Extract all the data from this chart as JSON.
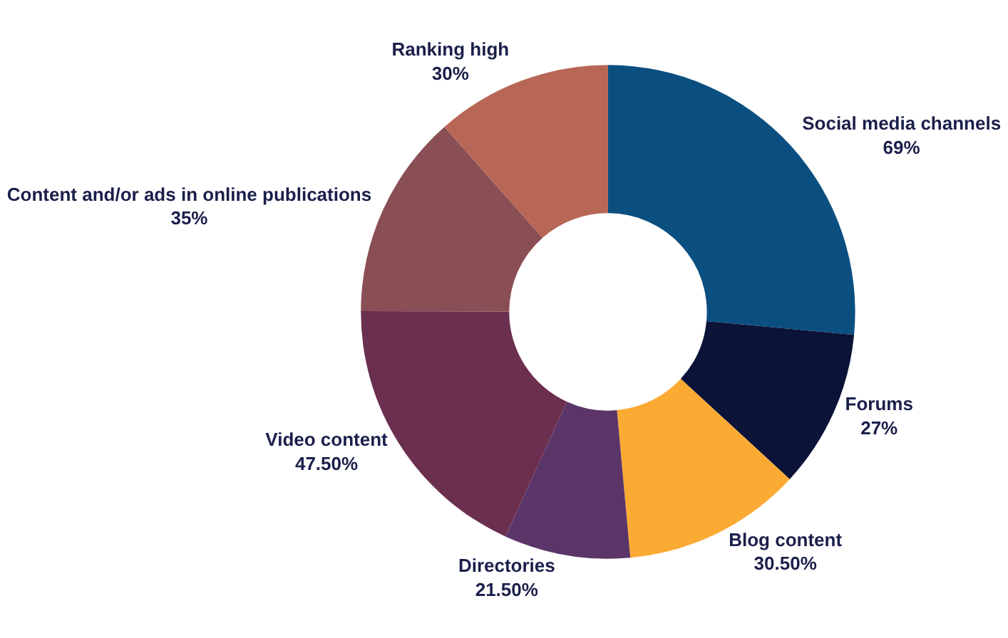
{
  "chart_data": {
    "type": "donut",
    "categories": [
      "Social media channels",
      "Forums",
      "Blog content",
      "Directories",
      "Video content",
      "Content and/or ads in online publications",
      "Ranking high"
    ],
    "values": [
      69,
      27,
      30.5,
      21.5,
      47.5,
      35,
      30
    ],
    "value_labels": [
      "69%",
      "27%",
      "30.50%",
      "21.50%",
      "47.50%",
      "35%",
      "30%"
    ],
    "colors": [
      "#0b4f80",
      "#0b1338",
      "#fbab33",
      "#5b3568",
      "#6b2f4f",
      "#8a4e55",
      "#b86655"
    ],
    "legend": false
  }
}
